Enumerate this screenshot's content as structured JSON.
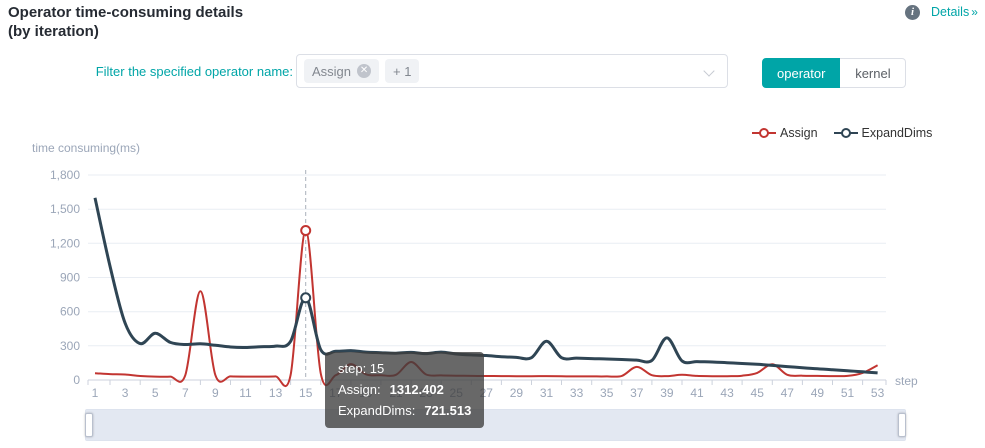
{
  "header": {
    "title_line1": "Operator time-consuming details",
    "title_line2": "(by iteration)",
    "info_icon": "i",
    "details_label": "Details",
    "details_chevron": "»"
  },
  "filter": {
    "label": "Filter the specified operator name:",
    "tags": [
      {
        "text": "Assign",
        "close_icon": "✕"
      },
      {
        "text": "+ 1"
      }
    ]
  },
  "toggle": {
    "options": [
      {
        "label": "operator",
        "active": true
      },
      {
        "label": "kernel",
        "active": false
      }
    ]
  },
  "tooltip": {
    "title": "step: 15",
    "rows": [
      {
        "label": "Assign:",
        "value": "1312.402"
      },
      {
        "label": "ExpandDims:",
        "value": "721.513"
      }
    ]
  },
  "chart_data": {
    "type": "line",
    "ylabel": "time consuming(ms)",
    "xlabel": "step",
    "ylim": [
      0,
      1800
    ],
    "y_tick_step": 300,
    "x_label_interval": 2,
    "grid": true,
    "legend_position": "top-right",
    "pointer_step": 15,
    "x": [
      1,
      2,
      3,
      4,
      5,
      6,
      7,
      8,
      9,
      10,
      11,
      12,
      13,
      14,
      15,
      16,
      17,
      18,
      19,
      20,
      21,
      22,
      23,
      24,
      25,
      26,
      27,
      28,
      29,
      30,
      31,
      32,
      33,
      34,
      35,
      36,
      37,
      38,
      39,
      40,
      41,
      42,
      43,
      44,
      45,
      46,
      47,
      48,
      49,
      50,
      51,
      52,
      53
    ],
    "series": [
      {
        "name": "Assign",
        "color": "#c23531",
        "values": [
          60,
          52,
          48,
          35,
          30,
          30,
          42,
          780,
          42,
          32,
          30,
          30,
          32,
          44,
          1312.402,
          55,
          42,
          140,
          50,
          42,
          46,
          158,
          48,
          40,
          38,
          36,
          35,
          34,
          33,
          33,
          34,
          33,
          32,
          32,
          32,
          36,
          115,
          42,
          34,
          46,
          36,
          33,
          33,
          38,
          62,
          138,
          46,
          38,
          36,
          34,
          36,
          62,
          130
        ]
      },
      {
        "name": "ExpandDims",
        "color": "#2f4554",
        "values": [
          1600,
          1000,
          500,
          320,
          410,
          330,
          312,
          318,
          305,
          290,
          285,
          292,
          298,
          340,
          721.513,
          265,
          252,
          258,
          245,
          240,
          235,
          242,
          232,
          245,
          228,
          220,
          215,
          205,
          198,
          196,
          340,
          196,
          192,
          188,
          184,
          180,
          175,
          172,
          370,
          168,
          162,
          158,
          152,
          145,
          138,
          128,
          118,
          108,
          98,
          90,
          82,
          72,
          62
        ]
      }
    ]
  }
}
